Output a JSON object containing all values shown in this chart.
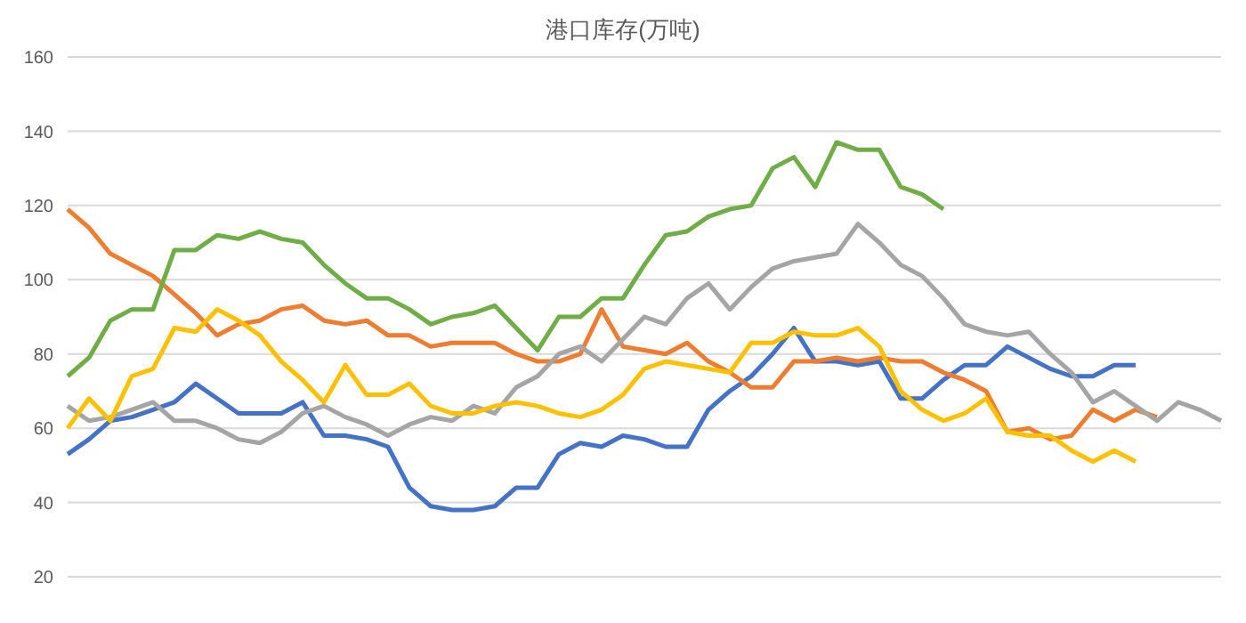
{
  "chart_data": {
    "type": "line",
    "title": "港口库存(万吨)",
    "categories": [
      null,
      null,
      null,
      null,
      null,
      null,
      null,
      null,
      null,
      null,
      null,
      null,
      null,
      null,
      null,
      null,
      null,
      null,
      null,
      null,
      null,
      null,
      null,
      null,
      null,
      null,
      null,
      null,
      null,
      null,
      null,
      null,
      null,
      null,
      null,
      null,
      null,
      null,
      null,
      null,
      null,
      null,
      null,
      null,
      null,
      null,
      null,
      null,
      null,
      null,
      null,
      null,
      null,
      null,
      null
    ],
    "series": [
      {
        "color": "#4472c4",
        "values": [
          53,
          57,
          62,
          63,
          65,
          67,
          72,
          68,
          64,
          64,
          64,
          67,
          58,
          58,
          57,
          55,
          44,
          39,
          38,
          38,
          39,
          44,
          44,
          53,
          56,
          55,
          58,
          57,
          55,
          55,
          65,
          70,
          74,
          80,
          87,
          78,
          78,
          77,
          78,
          68,
          68,
          73,
          77,
          77,
          82,
          79,
          76,
          74,
          74,
          77,
          77,
          null,
          null,
          null,
          null
        ]
      },
      {
        "color": "#ed7d31",
        "values": [
          119,
          114,
          107,
          104,
          101,
          96,
          91,
          85,
          88,
          89,
          92,
          93,
          89,
          88,
          89,
          85,
          85,
          82,
          83,
          83,
          83,
          80,
          78,
          78,
          80,
          92,
          82,
          81,
          80,
          83,
          78,
          75,
          71,
          71,
          78,
          78,
          79,
          78,
          79,
          78,
          78,
          75,
          73,
          70,
          59,
          60,
          57,
          58,
          65,
          62,
          65,
          63,
          null,
          null,
          null
        ]
      },
      {
        "color": "#a5a5a5",
        "values": [
          66,
          62,
          63,
          65,
          67,
          62,
          62,
          60,
          57,
          56,
          59,
          64,
          66,
          63,
          61,
          58,
          61,
          63,
          62,
          66,
          64,
          71,
          74,
          80,
          82,
          78,
          84,
          90,
          88,
          95,
          99,
          92,
          98,
          103,
          105,
          106,
          107,
          115,
          110,
          104,
          101,
          95,
          88,
          86,
          85,
          86,
          80,
          75,
          67,
          70,
          66,
          62,
          67,
          65,
          62
        ]
      },
      {
        "color": "#ffc000",
        "values": [
          60,
          68,
          62,
          74,
          76,
          87,
          86,
          92,
          89,
          85,
          78,
          73,
          67,
          77,
          69,
          69,
          72,
          66,
          64,
          64,
          66,
          67,
          66,
          64,
          63,
          65,
          69,
          76,
          78,
          77,
          76,
          75,
          83,
          83,
          86,
          85,
          85,
          87,
          82,
          70,
          65,
          62,
          64,
          68,
          59,
          58,
          58,
          54,
          51,
          54,
          51,
          null,
          null,
          null,
          null
        ]
      },
      {
        "color": "#70ad47",
        "values": [
          74,
          79,
          89,
          92,
          92,
          108,
          108,
          112,
          111,
          113,
          111,
          110,
          104,
          99,
          95,
          95,
          92,
          88,
          90,
          91,
          93,
          87,
          81,
          90,
          90,
          95,
          95,
          104,
          112,
          113,
          117,
          119,
          120,
          130,
          133,
          125,
          137,
          135,
          135,
          125,
          123,
          119,
          null,
          null,
          null,
          null,
          null,
          null,
          null,
          null,
          null,
          null,
          null,
          null,
          null
        ]
      }
    ],
    "ylim": [
      20,
      160
    ],
    "yticks": [
      20,
      40,
      60,
      80,
      100,
      120,
      140,
      160
    ],
    "grid": "y",
    "legend": false,
    "marker": "none",
    "line_style": "solid"
  }
}
